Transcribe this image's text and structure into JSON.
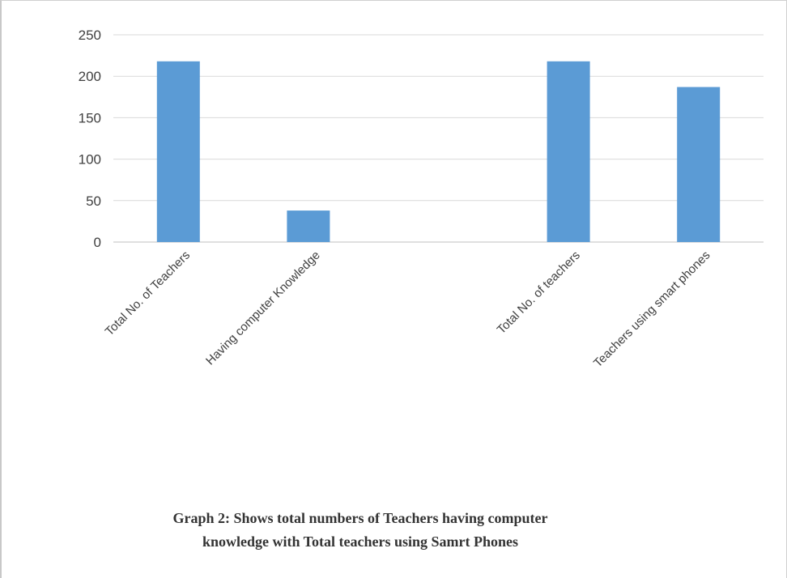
{
  "chart_data": {
    "type": "bar",
    "categories": [
      "Total No. of Teachers",
      "Having computer Knowledge",
      "",
      "Total No. of teachers",
      "Teachers using smart phones"
    ],
    "values": [
      218,
      38,
      null,
      218,
      187
    ],
    "ylim": [
      0,
      250
    ],
    "yticks": [
      0,
      50,
      100,
      150,
      200,
      250
    ],
    "grid": true,
    "legend": "none",
    "bar_color": "#5b9bd5",
    "grid_color": "#d9d9d9"
  },
  "caption": {
    "line1": "Graph 2: Shows total numbers of Teachers having computer",
    "line2": "knowledge with Total teachers using Samrt Phones"
  }
}
